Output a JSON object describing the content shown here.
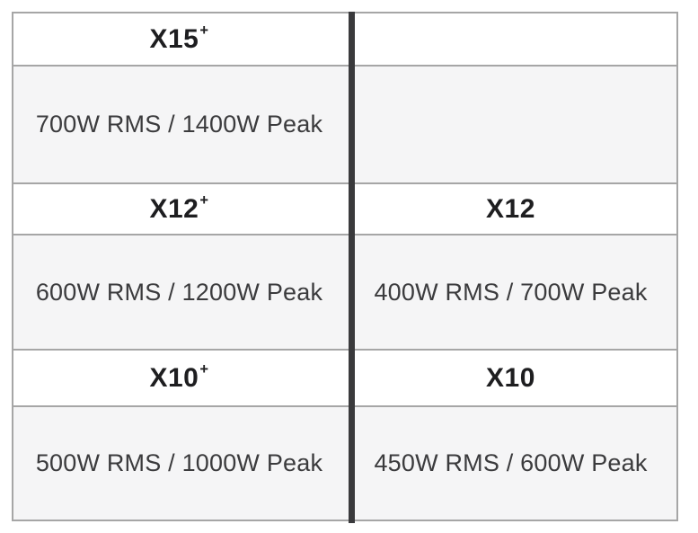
{
  "colors": {
    "page_background": "#ffffff",
    "spec_row_background": "#f5f5f6",
    "grid_border": "#a6a6a6",
    "column_divider": "#3a3a3c",
    "model_text": "#1e1e20",
    "spec_text": "#3b3b3d"
  },
  "table": {
    "columns": [
      {
        "rows": [
          {
            "model": "X15",
            "model_sup": "+",
            "spec": "700W RMS / 1400W Peak"
          },
          {
            "model": "X12",
            "model_sup": "+",
            "spec": "600W RMS / 1200W Peak"
          },
          {
            "model": "X10",
            "model_sup": "+",
            "spec": "500W RMS / 1000W Peak"
          }
        ]
      },
      {
        "rows": [
          {
            "model": "",
            "model_sup": "",
            "spec": ""
          },
          {
            "model": "X12",
            "model_sup": "",
            "spec": "400W RMS / 700W Peak"
          },
          {
            "model": "X10",
            "model_sup": "",
            "spec": "450W RMS / 600W Peak"
          }
        ]
      }
    ]
  },
  "chart_data": {
    "type": "table",
    "rows": [
      {
        "left_model": "X15+",
        "left_spec": "700W RMS / 1400W Peak",
        "right_model": "",
        "right_spec": ""
      },
      {
        "left_model": "X12+",
        "left_spec": "600W RMS / 1200W Peak",
        "right_model": "X12",
        "right_spec": "400W RMS / 700W Peak"
      },
      {
        "left_model": "X10+",
        "left_spec": "500W RMS / 1000W Peak",
        "right_model": "X10",
        "right_spec": "450W RMS / 600W Peak"
      }
    ],
    "models": [
      {
        "name": "X15+",
        "rms_watts": 700,
        "peak_watts": 1400
      },
      {
        "name": "X12+",
        "rms_watts": 600,
        "peak_watts": 1200
      },
      {
        "name": "X10+",
        "rms_watts": 500,
        "peak_watts": 1000
      },
      {
        "name": "X12",
        "rms_watts": 400,
        "peak_watts": 700
      },
      {
        "name": "X10",
        "rms_watts": 450,
        "peak_watts": 600
      }
    ]
  }
}
